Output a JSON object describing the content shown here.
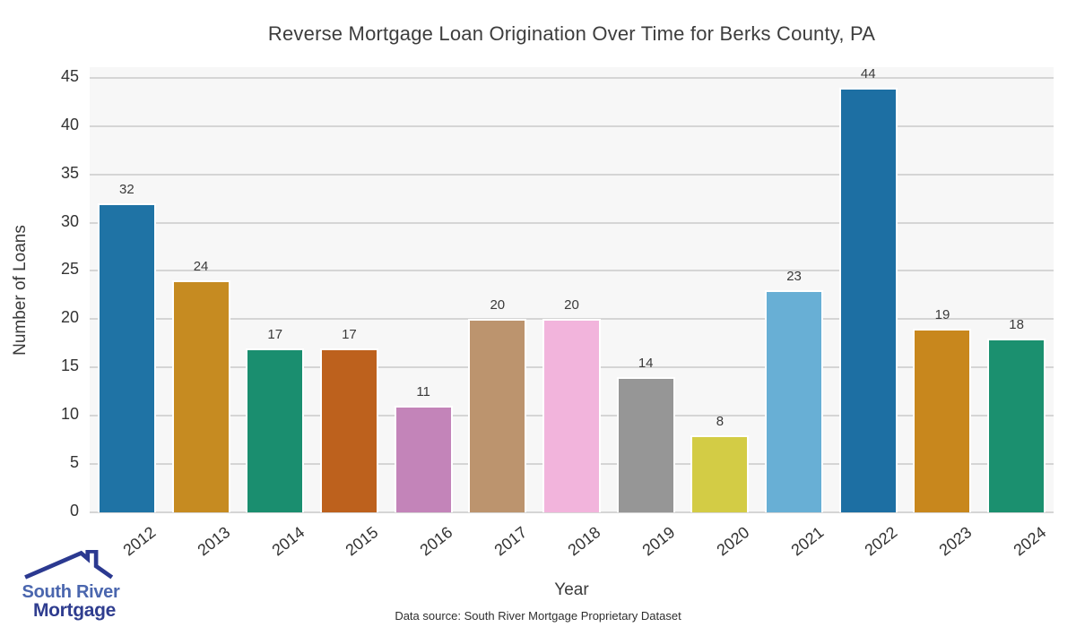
{
  "chart_data": {
    "type": "bar",
    "title": "Reverse Mortgage Loan Origination Over Time for Berks County, PA",
    "xlabel": "Year",
    "ylabel": "Number of Loans",
    "categories": [
      "2012",
      "2013",
      "2014",
      "2015",
      "2016",
      "2017",
      "2018",
      "2019",
      "2020",
      "2021",
      "2022",
      "2023",
      "2024"
    ],
    "values": [
      32,
      24,
      17,
      17,
      11,
      20,
      20,
      14,
      8,
      23,
      44,
      19,
      18
    ],
    "bar_colors": [
      "#1f73a5",
      "#c68b21",
      "#1a8e6f",
      "#bd611d",
      "#c384b9",
      "#bc946e",
      "#f2b4dc",
      "#969696",
      "#d3cc45",
      "#68afd5",
      "#1d6fa3",
      "#c8871d",
      "#1b906f"
    ],
    "ylim": [
      0,
      46.1
    ],
    "yticks": [
      0,
      5,
      10,
      15,
      20,
      25,
      30,
      35,
      40,
      45
    ],
    "grid": true,
    "legend": "none",
    "plot_bg": "#f7f7f7",
    "gridline_color": "#d5d5d5",
    "value_labels_shown": true
  },
  "footer": {
    "data_source": "Data source: South River Mortgage Proprietary Dataset"
  },
  "logo": {
    "line1": "South River",
    "line2": "Mortgage",
    "line1_color": "#4a66ae",
    "line2_color": "#2f3d8f",
    "roof_color": "#2b3990"
  }
}
